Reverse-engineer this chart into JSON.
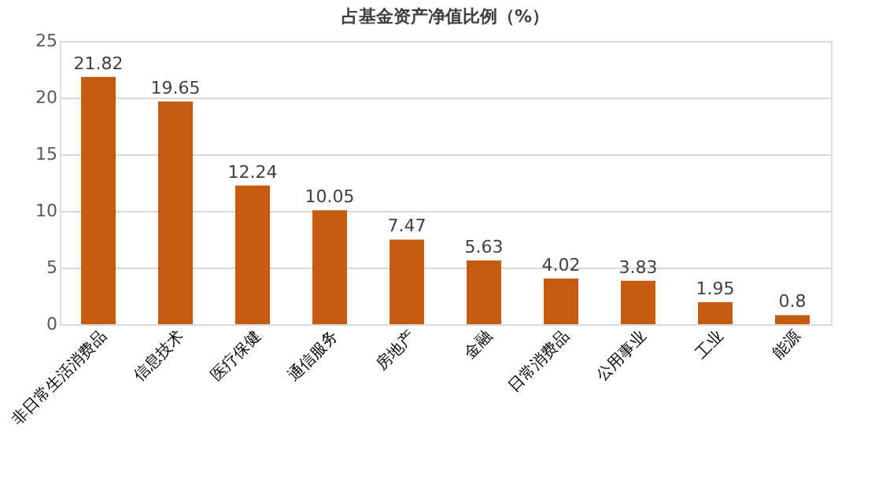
{
  "chart_data": {
    "type": "bar",
    "title": "占基金资产净值比例（%）",
    "categories": [
      "非日常生活消费品",
      "信息技术",
      "医疗保健",
      "通信服务",
      "房地产",
      "金融",
      "日常消费品",
      "公用事业",
      "工业",
      "能源"
    ],
    "values": [
      21.82,
      19.65,
      12.24,
      10.05,
      7.47,
      5.63,
      4.02,
      3.83,
      1.95,
      0.8
    ],
    "color": "#c55a11",
    "ylim": [
      0,
      25
    ],
    "yticks": [
      0,
      5,
      10,
      15,
      20,
      25
    ],
    "grid": "y",
    "data_labels": true
  }
}
